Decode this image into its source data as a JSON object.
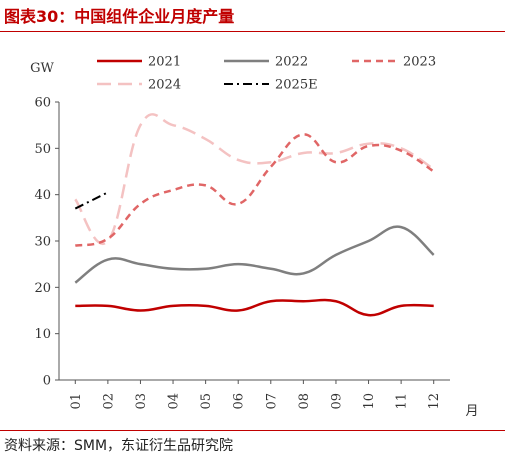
{
  "title": "图表30：中国组件企业月度产量",
  "source": "资料来源：SMM，东证衍生品研究院",
  "chart_data": {
    "type": "line",
    "title": "中国组件企业月度产量",
    "ylabel": "GW",
    "xlabel": "月",
    "ylim": [
      0,
      60
    ],
    "yticks": [
      0,
      10,
      20,
      30,
      40,
      50,
      60
    ],
    "categories": [
      "01",
      "02",
      "03",
      "04",
      "05",
      "06",
      "07",
      "08",
      "09",
      "10",
      "11",
      "12"
    ],
    "grid": false,
    "legend": "top",
    "series": [
      {
        "name": "2021",
        "color": "#c00000",
        "style": "solid",
        "width": 2.5,
        "values": [
          16,
          16,
          15,
          16,
          16,
          15,
          17,
          17,
          17,
          14,
          16,
          16
        ]
      },
      {
        "name": "2022",
        "color": "#7f7f7f",
        "style": "solid",
        "width": 2.5,
        "values": [
          21,
          26,
          25,
          24,
          24,
          25,
          24,
          23,
          27,
          30,
          33,
          27
        ]
      },
      {
        "name": "2023",
        "color": "#e06666",
        "style": "dash",
        "width": 2.5,
        "values": [
          29,
          30.5,
          38,
          41,
          42,
          38,
          46,
          53,
          47,
          50.5,
          49.5,
          45
        ]
      },
      {
        "name": "2024",
        "color": "#f4c2c2",
        "style": "longdash",
        "width": 2.5,
        "values": [
          39,
          30,
          55,
          55,
          52,
          47.5,
          47,
          49,
          49,
          51,
          50,
          45.5
        ]
      },
      {
        "name": "2025E",
        "color": "#000000",
        "style": "dashdot",
        "width": 2,
        "values": [
          37,
          40.5,
          null,
          null,
          null,
          null,
          null,
          null,
          null,
          null,
          null,
          null
        ]
      }
    ]
  }
}
